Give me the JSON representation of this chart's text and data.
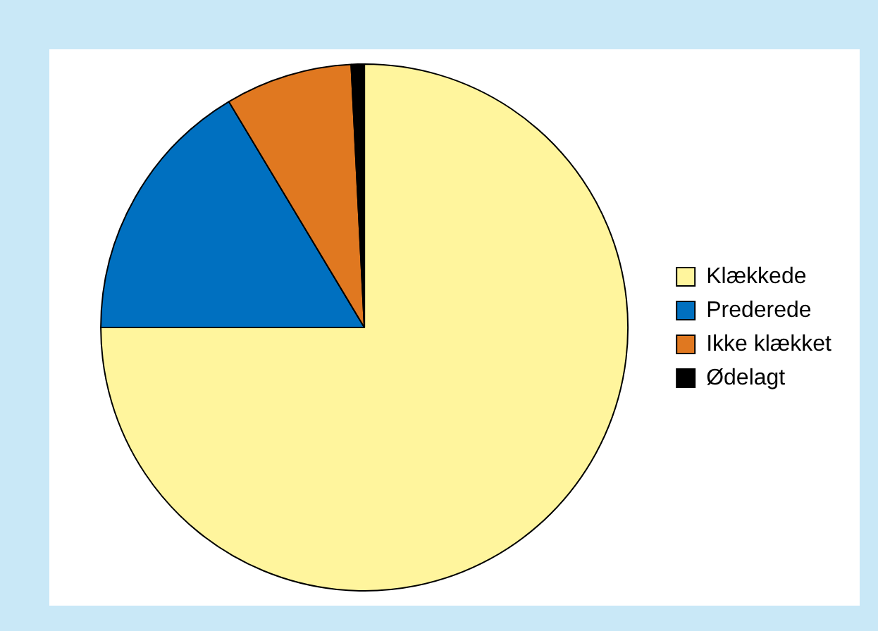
{
  "chart_data": {
    "type": "pie",
    "categories": [
      "Klækkede",
      "Prederede",
      "Ikke klækket",
      "Ødelagt"
    ],
    "values": [
      75,
      16.4,
      7.8,
      0.8
    ],
    "colors": [
      "#fff59d",
      "#0070c0",
      "#e07820",
      "#000000"
    ],
    "legend": "right"
  }
}
